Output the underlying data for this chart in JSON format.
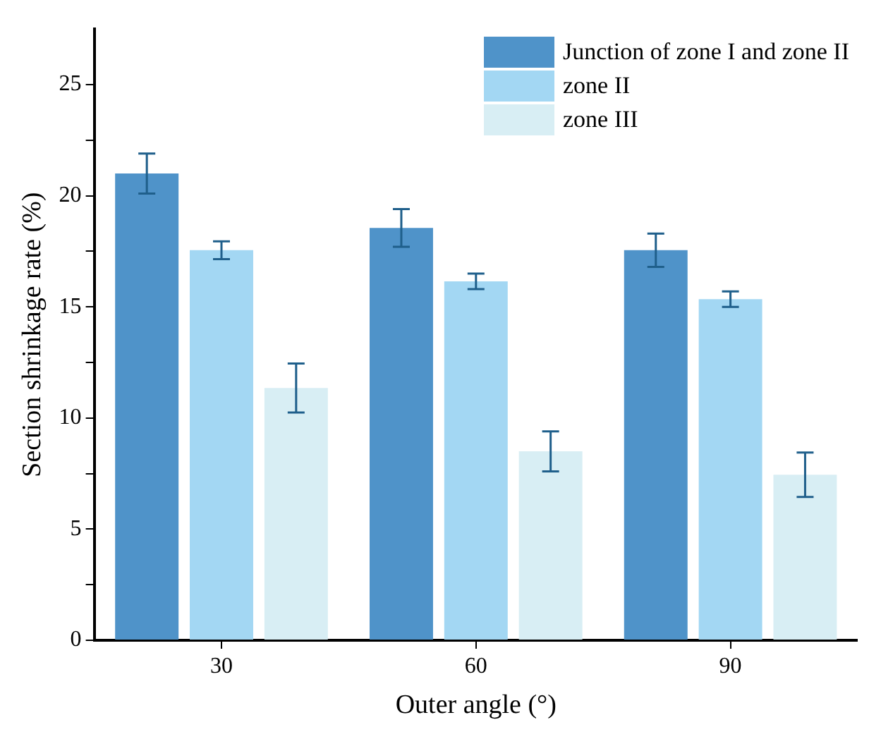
{
  "chart_data": {
    "type": "bar",
    "xlabel": "Outer angle (°)",
    "ylabel": "Section shrinkage rate (%)",
    "categories": [
      "30",
      "60",
      "90"
    ],
    "series": [
      {
        "name": "Junction of zone I and zone II",
        "color": "#4f93c9",
        "values": [
          21.0,
          18.55,
          17.55
        ],
        "errors": [
          0.9,
          0.85,
          0.75
        ]
      },
      {
        "name": "zone II",
        "color": "#a3d7f3",
        "values": [
          17.55,
          16.15,
          15.35
        ],
        "errors": [
          0.4,
          0.35,
          0.35
        ]
      },
      {
        "name": "zone III",
        "color": "#d8eef4",
        "values": [
          11.35,
          8.5,
          7.45
        ],
        "errors": [
          1.1,
          0.9,
          1.0
        ]
      }
    ],
    "ylim": [
      0,
      27.5
    ],
    "yticks": [
      0,
      {
        "value": 2.5,
        "label": null
      },
      5,
      {
        "value": 7.5,
        "label": null
      },
      10,
      {
        "value": 12.5,
        "label": null
      },
      15,
      {
        "value": 17.5,
        "label": null
      },
      20,
      {
        "value": 22.5,
        "label": null
      },
      25
    ],
    "grid": false,
    "legend": "top right"
  }
}
